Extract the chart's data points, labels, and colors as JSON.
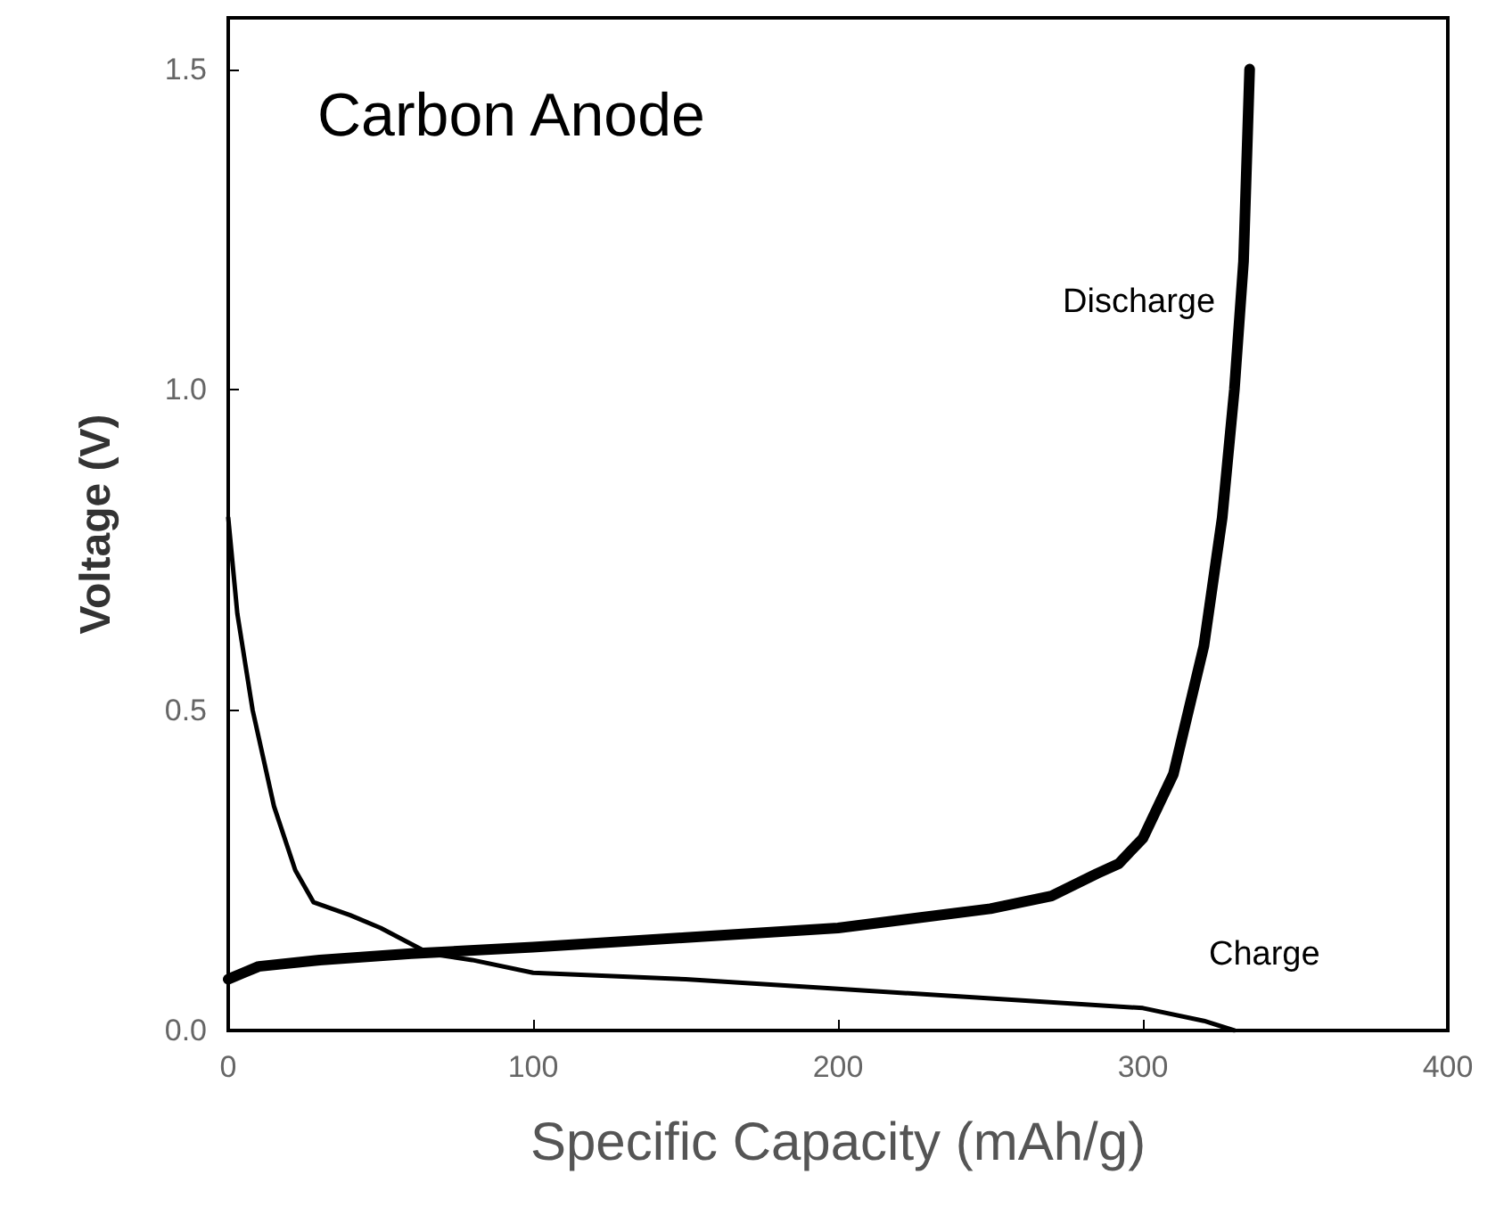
{
  "chart_data": {
    "type": "line",
    "xlabel": "Specific Capacity (mAh/g)",
    "ylabel": "Voltage (V)",
    "annotations": [
      "Carbon Anode"
    ],
    "series": [
      {
        "name": "Charge",
        "color": "#000000",
        "x": [
          0,
          3,
          8,
          15,
          22,
          28,
          40,
          50,
          66,
          80,
          100,
          150,
          200,
          250,
          300,
          320,
          330
        ],
        "values": [
          0.8,
          0.65,
          0.5,
          0.35,
          0.25,
          0.2,
          0.18,
          0.16,
          0.12,
          0.11,
          0.09,
          0.08,
          0.065,
          0.05,
          0.035,
          0.015,
          0.0
        ]
      },
      {
        "name": "Discharge",
        "color": "#000000",
        "x": [
          0,
          5,
          10,
          30,
          60,
          100,
          150,
          200,
          250,
          270,
          285,
          292,
          300,
          310,
          320,
          326,
          330,
          333,
          335
        ],
        "values": [
          0.08,
          0.09,
          0.1,
          0.11,
          0.12,
          0.13,
          0.145,
          0.16,
          0.19,
          0.21,
          0.245,
          0.26,
          0.3,
          0.4,
          0.6,
          0.8,
          1.0,
          1.2,
          1.5
        ]
      }
    ],
    "xlim": [
      0,
      400
    ],
    "xticks": [
      0,
      100,
      200,
      300,
      400
    ],
    "ylim": [
      0,
      1.58
    ],
    "yticks": [
      {
        "value": 0,
        "label": "0.0"
      },
      {
        "value": 0.5,
        "label": "0.5"
      },
      {
        "value": 1,
        "label": "1.0"
      },
      {
        "value": 1.5,
        "label": "1.5"
      }
    ],
    "grid": false,
    "marker": "none",
    "line_style": "solid"
  }
}
